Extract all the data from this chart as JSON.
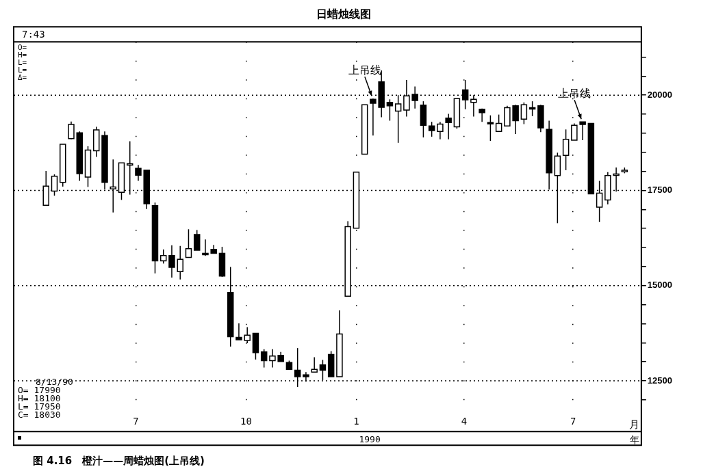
{
  "chart_data": {
    "type": "candlestick",
    "title": "日蜡烛线图",
    "xlabel": "月",
    "colors": [
      "#ffffff",
      "#ffffff",
      "#ffffff",
      "#ffffff",
      "#000000",
      "#ffffff",
      "#ffffff",
      "#000000",
      "#ffffff",
      "#ffffff",
      "#ffffff",
      "#000000",
      "#000000",
      "#000000",
      "#ffffff",
      "#000000",
      "#ffffff",
      "#ffffff",
      "#000000",
      "#000000",
      "#000000",
      "#000000",
      "#000000",
      "#000000",
      "#ffffff",
      "#000000",
      "#000000",
      "#ffffff",
      "#000000",
      "#000000",
      "#000000",
      "#000000",
      "#ffffff",
      "#000000",
      "#000000",
      "#ffffff",
      "#ffffff",
      "#ffffff",
      "#ffffff",
      "#000000",
      "#000000",
      "#000000",
      "#ffffff",
      "#ffffff",
      "#000000",
      "#000000",
      "#000000",
      "#ffffff",
      "#000000",
      "#ffffff",
      "#000000",
      "#ffffff",
      "#000000",
      "#000000",
      "#ffffff",
      "#ffffff",
      "#000000",
      "#ffffff",
      "#000000",
      "#000000",
      "#000000",
      "#ffffff",
      "#ffffff",
      "#ffffff",
      "#000000",
      "#000000",
      "#ffffff",
      "#ffffff",
      "#ffffff",
      "#ffffff"
    ],
    "x": [
      "1989-04-17",
      "1989-04-24",
      "1989-05-01",
      "1989-05-08",
      "1989-05-15",
      "1989-05-22",
      "1989-05-29",
      "1989-06-05",
      "1989-06-12",
      "1989-06-19",
      "1989-06-26",
      "1989-07-03",
      "1989-07-10",
      "1989-07-17",
      "1989-07-24",
      "1989-07-31",
      "1989-08-07",
      "1989-08-14",
      "1989-08-21",
      "1989-08-28",
      "1989-09-04",
      "1989-09-11",
      "1989-09-18",
      "1989-09-25",
      "1989-10-02",
      "1989-10-09",
      "1989-10-16",
      "1989-10-23",
      "1989-10-30",
      "1989-11-06",
      "1989-11-13",
      "1989-11-20",
      "1989-11-27",
      "1989-12-04",
      "1989-12-11",
      "1989-12-18",
      "1989-12-25",
      "1990-01-01",
      "1990-01-08",
      "1990-01-15",
      "1990-01-22",
      "1990-01-29",
      "1990-02-05",
      "1990-02-12",
      "1990-02-19",
      "1990-02-26",
      "1990-03-05",
      "1990-03-12",
      "1990-03-19",
      "1990-03-26",
      "1990-04-02",
      "1990-04-09",
      "1990-04-16",
      "1990-04-23",
      "1990-04-30",
      "1990-05-07",
      "1990-05-14",
      "1990-05-21",
      "1990-05-28",
      "1990-06-04",
      "1990-06-11",
      "1990-06-18",
      "1990-06-25",
      "1990-07-02",
      "1990-07-09",
      "1990-07-16",
      "1990-07-23",
      "1990-07-30",
      "1990-08-06",
      "1990-08-13"
    ],
    "ohlc": [
      [
        17110,
        18010,
        17110,
        17610
      ],
      [
        17480,
        17920,
        17360,
        17870
      ],
      [
        17710,
        18710,
        17600,
        18710
      ],
      [
        18860,
        19310,
        18840,
        19230
      ],
      [
        19010,
        19050,
        17750,
        17940
      ],
      [
        17850,
        18660,
        17590,
        18560
      ],
      [
        18540,
        19170,
        18380,
        19090
      ],
      [
        18940,
        19050,
        17520,
        17710
      ],
      [
        17540,
        18310,
        16920,
        17590
      ],
      [
        17450,
        18220,
        17250,
        18220
      ],
      [
        18190,
        18790,
        17390,
        18200
      ],
      [
        18080,
        18170,
        17750,
        17900
      ],
      [
        18030,
        18030,
        17010,
        17150
      ],
      [
        17100,
        17180,
        15320,
        15650
      ],
      [
        15650,
        15950,
        15580,
        15790
      ],
      [
        15790,
        16060,
        15210,
        15480
      ],
      [
        15370,
        16040,
        15160,
        15690
      ],
      [
        15740,
        16480,
        15740,
        15970
      ],
      [
        16340,
        16460,
        15930,
        15930
      ],
      [
        15850,
        16210,
        15780,
        15840
      ],
      [
        15950,
        16070,
        15850,
        15850
      ],
      [
        15850,
        16020,
        15230,
        15250
      ],
      [
        14820,
        15490,
        13400,
        13660
      ],
      [
        13640,
        14010,
        13580,
        13580
      ],
      [
        13560,
        13910,
        13490,
        13700
      ],
      [
        13750,
        13750,
        13060,
        13240
      ],
      [
        13260,
        13330,
        12850,
        13030
      ],
      [
        13030,
        13330,
        12850,
        13150
      ],
      [
        13170,
        13260,
        13010,
        13010
      ],
      [
        12980,
        13030,
        12800,
        12800
      ],
      [
        12780,
        13360,
        12340,
        12610
      ],
      [
        12660,
        12730,
        12480,
        12610
      ],
      [
        12730,
        13120,
        12730,
        12800
      ],
      [
        12920,
        13050,
        12520,
        12780
      ],
      [
        13190,
        13280,
        12610,
        12610
      ],
      [
        12610,
        14350,
        12610,
        13730
      ],
      [
        14720,
        16690,
        14720,
        16550
      ],
      [
        16510,
        17980,
        16510,
        17980
      ],
      [
        18450,
        19750,
        18450,
        19750
      ],
      [
        19890,
        19910,
        18940,
        19790
      ],
      [
        20350,
        20650,
        19420,
        19680
      ],
      [
        19810,
        19890,
        19330,
        19720
      ],
      [
        19580,
        20000,
        18750,
        19770
      ],
      [
        19610,
        20400,
        19440,
        19980
      ],
      [
        20020,
        20230,
        19650,
        19860
      ],
      [
        19740,
        19840,
        18890,
        19210
      ],
      [
        19190,
        19300,
        18910,
        19070
      ],
      [
        19050,
        19300,
        18840,
        19240
      ],
      [
        19400,
        19510,
        18840,
        19280
      ],
      [
        19170,
        19910,
        19120,
        19910
      ],
      [
        20140,
        20400,
        19630,
        19880
      ],
      [
        19810,
        20000,
        19440,
        19890
      ],
      [
        19630,
        19650,
        19300,
        19540
      ],
      [
        19280,
        19470,
        18800,
        19270
      ],
      [
        19050,
        19490,
        19050,
        19260
      ],
      [
        19190,
        19720,
        19190,
        19670
      ],
      [
        19720,
        19750,
        18980,
        19330
      ],
      [
        19370,
        19810,
        19240,
        19750
      ],
      [
        19670,
        19840,
        19450,
        19660
      ],
      [
        19720,
        19750,
        19030,
        19140
      ],
      [
        19100,
        19330,
        17520,
        17960
      ],
      [
        17890,
        18490,
        16640,
        18400
      ],
      [
        18420,
        19100,
        18030,
        18840
      ],
      [
        18820,
        19260,
        18820,
        19210
      ],
      [
        19300,
        19300,
        18820,
        19230
      ],
      [
        19260,
        19260,
        17410,
        17410
      ],
      [
        17060,
        17750,
        16670,
        17430
      ],
      [
        17250,
        17980,
        17130,
        17890
      ],
      [
        17920,
        18100,
        17470,
        17930
      ],
      [
        17990,
        18100,
        17950,
        18030
      ]
    ],
    "xlim": [
      "1989-03-21",
      "1990-08-27"
    ],
    "xticks": [
      {
        "value": "1989-07-01",
        "label": "7"
      },
      {
        "value": "1989-10-01",
        "label": "10"
      },
      {
        "value": "1990-01-01",
        "label": "1"
      },
      {
        "value": "1990-04-01",
        "label": "4"
      },
      {
        "value": "1990-07-01",
        "label": "7"
      }
    ],
    "ylim": [
      11600,
      21400
    ],
    "yticks": [
      {
        "value": 12000,
        "label": null
      },
      {
        "value": 12500,
        "label": "12500"
      },
      {
        "value": 13000,
        "label": null
      },
      {
        "value": 13500,
        "label": null
      },
      {
        "value": 14000,
        "label": null
      },
      {
        "value": 14500,
        "label": null
      },
      {
        "value": 15000,
        "label": "15000"
      },
      {
        "value": 15500,
        "label": null
      },
      {
        "value": 16000,
        "label": null
      },
      {
        "value": 16500,
        "label": null
      },
      {
        "value": 17000,
        "label": null
      },
      {
        "value": 17500,
        "label": "17500"
      },
      {
        "value": 18000,
        "label": null
      },
      {
        "value": 18500,
        "label": null
      },
      {
        "value": 19000,
        "label": null
      },
      {
        "value": 19500,
        "label": null
      },
      {
        "value": 20000,
        "label": "20000"
      },
      {
        "value": 20500,
        "label": null
      },
      {
        "value": 21000,
        "label": null
      }
    ],
    "grid": "x",
    "ref_lines": [
      {
        "axis": "y",
        "value": 12500,
        "line_style": "dotted"
      },
      {
        "axis": "y",
        "value": 15000,
        "line_style": "dotted"
      },
      {
        "axis": "y",
        "value": 17500,
        "line_style": "dotted"
      },
      {
        "axis": "y",
        "value": 20000,
        "line_style": "dotted"
      }
    ],
    "annotations": [
      "7:43",
      "O=\nH=\nL=\nL=\nΔ=",
      "8/13/90\nO= 17990\nH= 18100\nL= 17950\nC= 18030",
      "1990",
      "年",
      {
        "text": "上吊线",
        "x": "1990-01-15",
        "y": 19910
      },
      {
        "text": "上吊线",
        "x": "1990-07-09",
        "y": 19300
      },
      "图 4.16　橙汁——周蜡烛图(上吊线)"
    ]
  }
}
